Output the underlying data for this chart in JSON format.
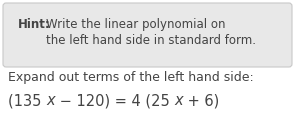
{
  "hint_bold": "Hint:",
  "hint_line1": "Write the linear polynomial on",
  "hint_line2": "the left hand side in standard form.",
  "body_line1": "Expand out terms of the left hand side:",
  "box_bg": "#e8e8e8",
  "box_border": "#c8c8c8",
  "text_color": "#444444",
  "bg_color": "#ffffff",
  "font_size_hint": 8.5,
  "font_size_body": 9.0,
  "font_size_eq": 10.5
}
